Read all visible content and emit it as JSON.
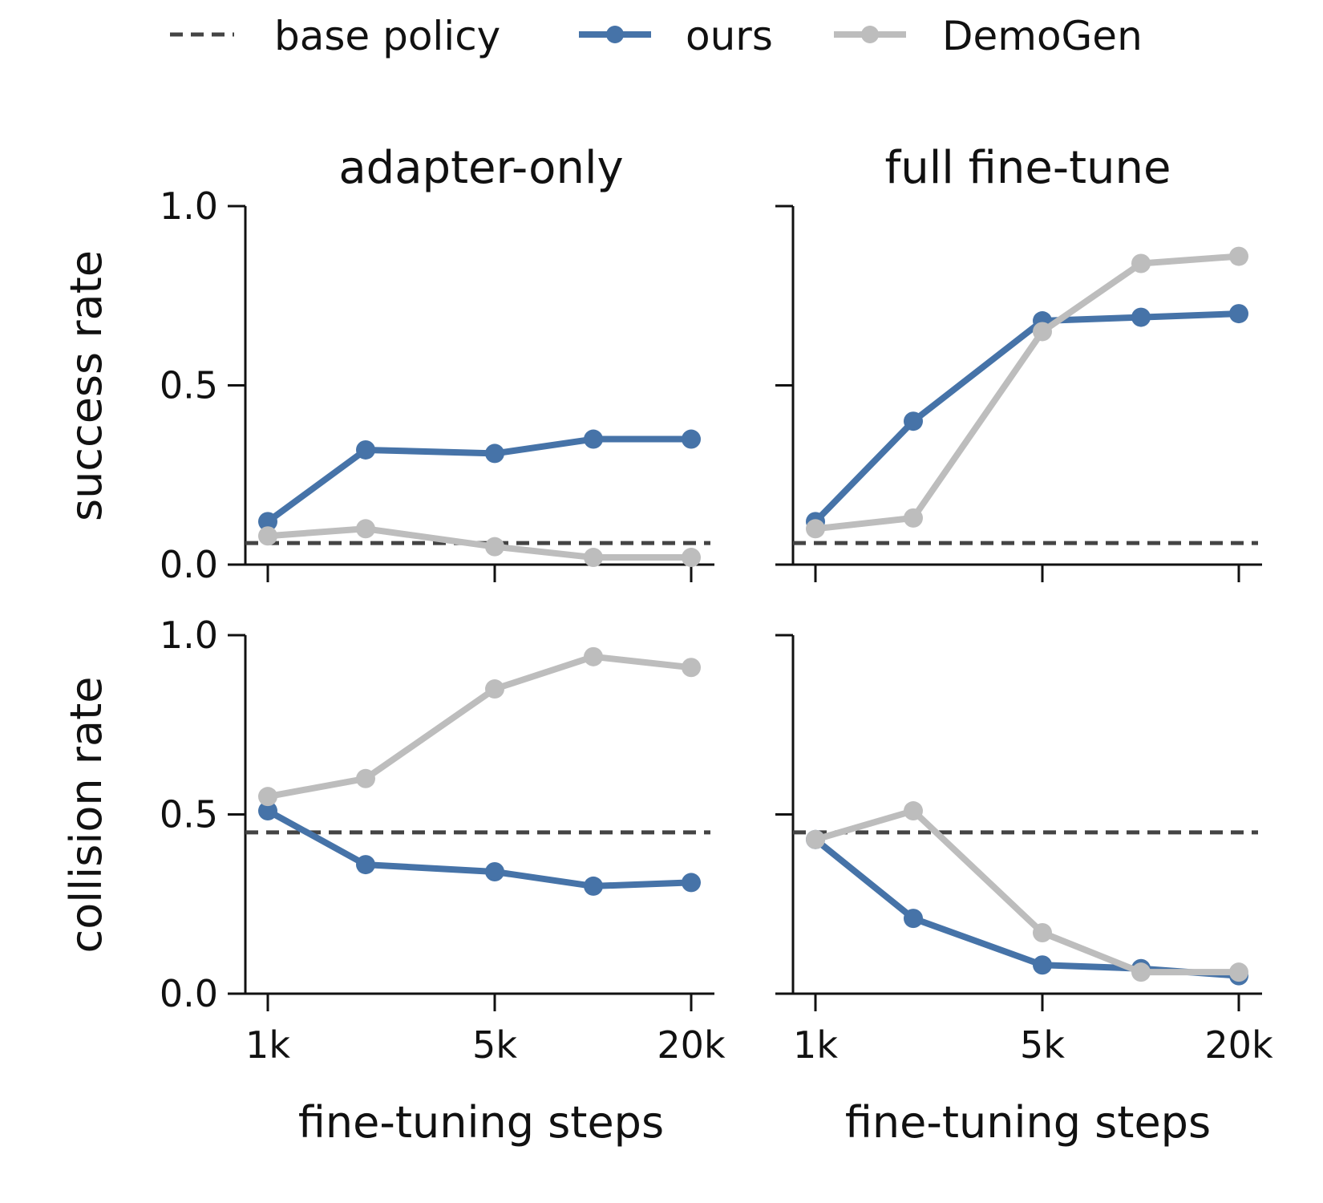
{
  "legend": {
    "items": [
      {
        "label": "base policy",
        "style": "dashed",
        "color": "#444444"
      },
      {
        "label": "ours",
        "style": "line-marker",
        "color": "#4673a8"
      },
      {
        "label": "DemoGen",
        "style": "line-marker",
        "color": "#bdbdbd"
      }
    ]
  },
  "columns": [
    "adapter-only",
    "full fine-tune"
  ],
  "rows": [
    "success rate",
    "collision rate"
  ],
  "xlabel": "fine-tuning steps",
  "chart_data": {
    "type": "line",
    "grid": false,
    "legend_position": "top-center",
    "x": [
      "1k",
      "2k",
      "5k",
      "10k",
      "20k"
    ],
    "xticks": [
      "1k",
      "5k",
      "20k"
    ],
    "yticks": [
      "0.0",
      "0.5",
      "1.0"
    ],
    "ylim": [
      0,
      1
    ],
    "colors": {
      "base policy": "#444444",
      "ours": "#4673a8",
      "DemoGen": "#bdbdbd"
    },
    "panels": [
      {
        "title": "adapter-only",
        "ylabel": "success rate",
        "base_policy": 0.06,
        "series": [
          {
            "name": "ours",
            "values": [
              0.12,
              0.32,
              0.31,
              0.35,
              0.35
            ]
          },
          {
            "name": "DemoGen",
            "values": [
              0.08,
              0.1,
              0.05,
              0.02,
              0.02
            ]
          }
        ]
      },
      {
        "title": "full fine-tune",
        "ylabel": "",
        "base_policy": 0.06,
        "series": [
          {
            "name": "ours",
            "values": [
              0.12,
              0.4,
              0.68,
              0.69,
              0.7
            ]
          },
          {
            "name": "DemoGen",
            "values": [
              0.1,
              0.13,
              0.65,
              0.84,
              0.86
            ]
          }
        ]
      },
      {
        "title": "",
        "ylabel": "collision rate",
        "base_policy": 0.45,
        "series": [
          {
            "name": "ours",
            "values": [
              0.51,
              0.36,
              0.34,
              0.3,
              0.31
            ]
          },
          {
            "name": "DemoGen",
            "values": [
              0.55,
              0.6,
              0.85,
              0.94,
              0.91
            ]
          }
        ]
      },
      {
        "title": "",
        "ylabel": "",
        "base_policy": 0.45,
        "series": [
          {
            "name": "ours",
            "values": [
              0.43,
              0.21,
              0.08,
              0.07,
              0.05
            ]
          },
          {
            "name": "DemoGen",
            "values": [
              0.43,
              0.51,
              0.17,
              0.06,
              0.06
            ]
          }
        ]
      }
    ]
  }
}
